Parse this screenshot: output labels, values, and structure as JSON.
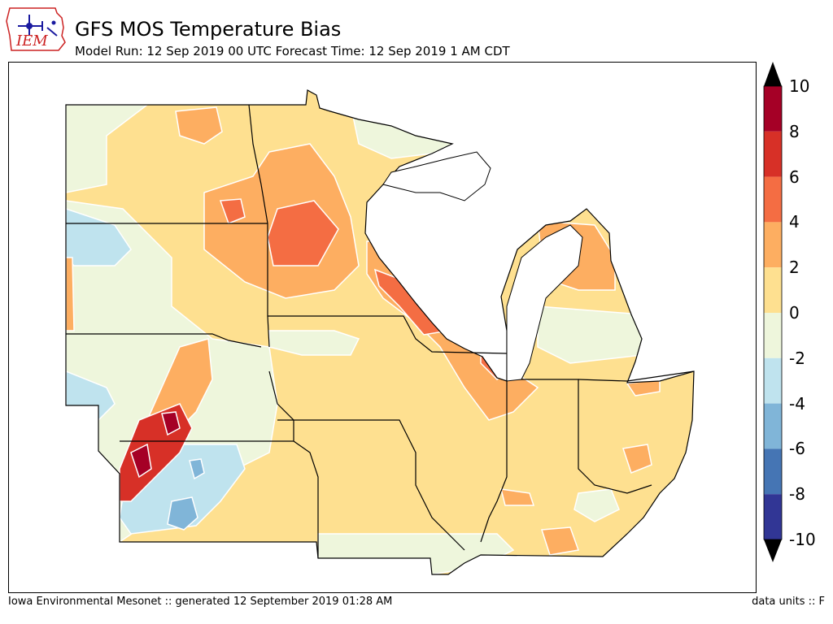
{
  "header": {
    "logo_text": "IEM",
    "title": "GFS MOS Temperature Bias",
    "subtitle": "Model Run: 12 Sep 2019 00 UTC Forecast Time: 12 Sep 2019 1 AM CDT"
  },
  "colorbar": {
    "ticks": [
      "10",
      "8",
      "6",
      "4",
      "2",
      "0",
      "-2",
      "-4",
      "-6",
      "-8",
      "-10"
    ],
    "bins": [
      {
        "range": "8 to 10",
        "color": "#a50026"
      },
      {
        "range": "6 to 8",
        "color": "#d73027"
      },
      {
        "range": "4 to 6",
        "color": "#f46d43"
      },
      {
        "range": "2 to 4",
        "color": "#fdae61"
      },
      {
        "range": "0 to 2",
        "color": "#fee090"
      },
      {
        "range": "-2 to 0",
        "color": "#eef6dc"
      },
      {
        "range": "-4 to -2",
        "color": "#bfe3ee"
      },
      {
        "range": "-6 to -4",
        "color": "#80b5d8"
      },
      {
        "range": "-8 to -6",
        "color": "#4575b4"
      },
      {
        "range": "-10 to -8",
        "color": "#313695"
      }
    ],
    "extend_top_color": "#000000",
    "extend_bottom_color": "#000000"
  },
  "footer": {
    "left": "Iowa Environmental Mesonet :: generated 12 September 2019 01:28 AM",
    "right": "data units :: F"
  }
}
